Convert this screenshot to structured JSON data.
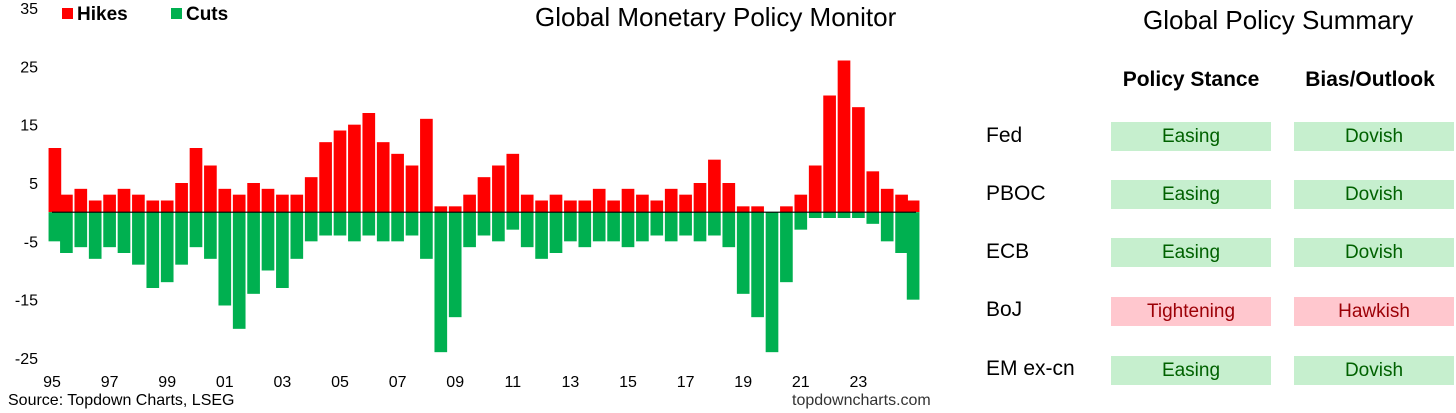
{
  "chart_data": {
    "type": "bar",
    "title": "Global Monetary Policy Monitor",
    "legend": [
      "Hikes",
      "Cuts"
    ],
    "legend_position": "top-left",
    "colors": {
      "hikes": "#ff0000",
      "cuts": "#00b050"
    },
    "ylim": [
      -25,
      35
    ],
    "yticks": [
      35,
      25,
      15,
      5,
      -5,
      -15,
      -25
    ],
    "xlim": [
      1995.0,
      2025.0
    ],
    "xticks": [
      "95",
      "97",
      "99",
      "01",
      "03",
      "05",
      "07",
      "09",
      "11",
      "13",
      "15",
      "17",
      "19",
      "21",
      "23"
    ],
    "grid": false,
    "x": [
      1995.1,
      1995.5,
      1996.0,
      1996.5,
      1997.0,
      1997.5,
      1998.0,
      1998.5,
      1999.0,
      1999.5,
      2000.0,
      2000.5,
      2001.0,
      2001.5,
      2002.0,
      2002.5,
      2003.0,
      2003.5,
      2004.0,
      2004.5,
      2005.0,
      2005.5,
      2006.0,
      2006.5,
      2007.0,
      2007.5,
      2008.0,
      2008.5,
      2009.0,
      2009.5,
      2010.0,
      2010.5,
      2011.0,
      2011.5,
      2012.0,
      2012.5,
      2013.0,
      2013.5,
      2014.0,
      2014.5,
      2015.0,
      2015.5,
      2016.0,
      2016.5,
      2017.0,
      2017.5,
      2018.0,
      2018.5,
      2019.0,
      2019.5,
      2020.0,
      2020.5,
      2021.0,
      2021.5,
      2022.0,
      2022.5,
      2023.0,
      2023.5,
      2024.0,
      2024.5,
      2024.9
    ],
    "series": [
      {
        "name": "Hikes",
        "values": [
          11,
          3,
          4,
          2,
          3,
          4,
          3,
          2,
          2,
          5,
          11,
          8,
          4,
          3,
          5,
          4,
          3,
          3,
          6,
          12,
          14,
          15,
          17,
          12,
          10,
          8,
          16,
          1,
          1,
          3,
          6,
          8,
          10,
          3,
          2,
          3,
          2,
          2,
          4,
          2,
          4,
          3,
          2,
          4,
          3,
          5,
          9,
          5,
          1,
          1,
          0,
          1,
          3,
          8,
          20,
          26,
          18,
          7,
          4,
          3,
          2
        ]
      },
      {
        "name": "Cuts",
        "values": [
          -5,
          -7,
          -6,
          -8,
          -6,
          -7,
          -9,
          -13,
          -12,
          -9,
          -6,
          -8,
          -16,
          -20,
          -14,
          -10,
          -13,
          -8,
          -5,
          -4,
          -4,
          -5,
          -4,
          -5,
          -5,
          -4,
          -8,
          -24,
          -18,
          -6,
          -4,
          -5,
          -3,
          -6,
          -8,
          -7,
          -5,
          -6,
          -5,
          -5,
          -6,
          -5,
          -4,
          -5,
          -4,
          -5,
          -4,
          -6,
          -14,
          -18,
          -24,
          -12,
          -3,
          -1,
          -1,
          -1,
          -1,
          -2,
          -5,
          -7,
          -15
        ]
      }
    ],
    "source": "Source: Topdown Charts, LSEG",
    "watermark": "topdowncharts.com"
  },
  "summary": {
    "title": "Global Policy Summary",
    "headers": [
      "Policy Stance",
      "Bias/Outlook"
    ],
    "rows": [
      {
        "label": "Fed",
        "stance": "Easing",
        "bias": "Dovish",
        "state": "easing"
      },
      {
        "label": "PBOC",
        "stance": "Easing",
        "bias": "Dovish",
        "state": "easing"
      },
      {
        "label": "ECB",
        "stance": "Easing",
        "bias": "Dovish",
        "state": "easing"
      },
      {
        "label": "BoJ",
        "stance": "Tightening",
        "bias": "Hawkish",
        "state": "tight"
      },
      {
        "label": "EM ex-cn",
        "stance": "Easing",
        "bias": "Dovish",
        "state": "easing"
      }
    ]
  }
}
